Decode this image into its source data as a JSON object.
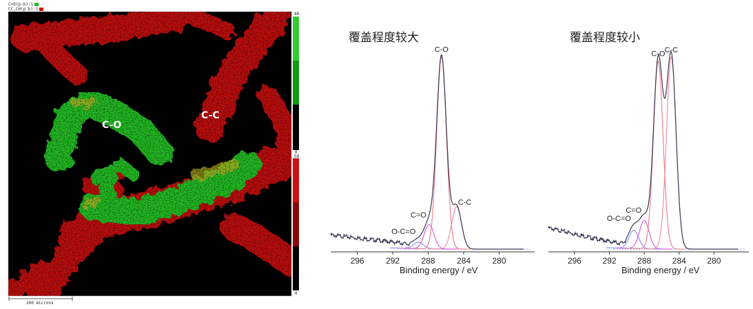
{
  "map": {
    "legend": [
      "C=O(p-b):1",
      "CC,CH(p-b):1"
    ],
    "legend_colors": [
      "#22c022",
      "#cc1111"
    ],
    "labels": {
      "co": "C-O",
      "cc": "C-C"
    },
    "colorbar_green": {
      "max": "48",
      "min": "0"
    },
    "colorbar_red": {
      "max": "58",
      "min": "0"
    },
    "scale_bar": "200 microns"
  },
  "chart_data": [
    {
      "type": "line",
      "title": "覆盖程度较大",
      "xlabel": "Binding energy / eV",
      "ylabel": "",
      "x_reversed": true,
      "xlim": [
        299,
        276
      ],
      "ylim": [
        0,
        100
      ],
      "xticks": [
        296,
        292,
        288,
        284,
        280
      ],
      "peaks": [
        {
          "label": "O-C=O",
          "x": 289.1,
          "height": 3.2,
          "color": "#8888ff"
        },
        {
          "label": "C=O",
          "x": 287.9,
          "height": 12,
          "color": "#dd55dd"
        },
        {
          "label": "C-O",
          "x": 286.5,
          "height": 95,
          "color": "#ee7788"
        },
        {
          "label": "C-C",
          "x": 284.8,
          "height": 21,
          "color": "#ee8899"
        }
      ],
      "background": [
        [
          299,
          7.5
        ],
        [
          294,
          5
        ],
        [
          291,
          3.5
        ],
        [
          289,
          1.5
        ],
        [
          287,
          0.5
        ],
        [
          283,
          0
        ],
        [
          276,
          0
        ]
      ]
    },
    {
      "type": "line",
      "title": "覆盖程度较小",
      "xlabel": "Binding energy / eV",
      "ylabel": "",
      "x_reversed": true,
      "xlim": [
        299,
        276
      ],
      "ylim": [
        0,
        100
      ],
      "xticks": [
        296,
        292,
        288,
        284,
        280
      ],
      "peaks": [
        {
          "label": "O-C=O",
          "x": 289.2,
          "height": 9,
          "color": "#8888ff"
        },
        {
          "label": "C=O",
          "x": 288.0,
          "height": 14,
          "color": "#dd55dd"
        },
        {
          "label": "C-O",
          "x": 286.4,
          "height": 93,
          "color": "#ee7788"
        },
        {
          "label": "C-C",
          "x": 284.9,
          "height": 95,
          "color": "#ee8899"
        }
      ],
      "background": [
        [
          299,
          11
        ],
        [
          294,
          6
        ],
        [
          291,
          3.5
        ],
        [
          289,
          2
        ],
        [
          287,
          0.5
        ],
        [
          283,
          0
        ],
        [
          276,
          0
        ]
      ]
    }
  ]
}
